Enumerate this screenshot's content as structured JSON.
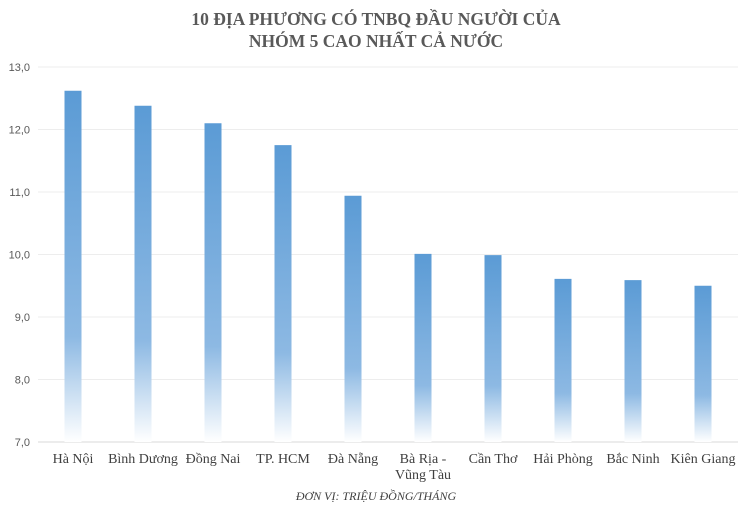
{
  "chart_data": {
    "type": "bar",
    "title_lines": [
      "10 ĐỊA PHƯƠNG CÓ TNBQ ĐẦU NGƯỜI CỦA",
      "NHÓM 5 CAO NHẤT CẢ NƯỚC"
    ],
    "xlabel": "ĐƠN VỊ: TRIỆU ĐỒNG/THÁNG",
    "ylabel": "",
    "categories": [
      [
        "Hà Nội"
      ],
      [
        "Bình Dương"
      ],
      [
        "Đồng Nai"
      ],
      [
        "TP. HCM"
      ],
      [
        "Đà Nẵng"
      ],
      [
        "Bà Rịa -",
        "Vũng Tàu"
      ],
      [
        "Cần Thơ"
      ],
      [
        "Hải Phòng"
      ],
      [
        "Bắc Ninh"
      ],
      [
        "Kiên Giang"
      ]
    ],
    "values": [
      12.62,
      12.38,
      12.1,
      11.75,
      10.94,
      10.01,
      9.99,
      9.61,
      9.59,
      9.5
    ],
    "ylim": [
      7.0,
      13.0
    ],
    "yticks": [
      "7,0",
      "8,0",
      "9,0",
      "10,0",
      "11,0",
      "12,0",
      "13,0"
    ],
    "grid": true,
    "legend": "none",
    "bar_color": "#5B9BD5",
    "bar_fill": "gradient fading to white at base"
  }
}
